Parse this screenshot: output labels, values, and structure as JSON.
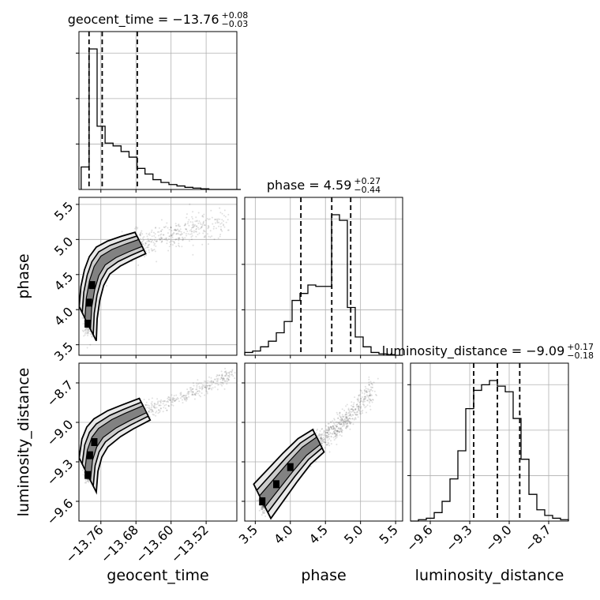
{
  "chart_data": {
    "type": "corner",
    "parameters": [
      {
        "name": "geocent_time",
        "median": -13.76,
        "upper_err": 0.08,
        "lower_err": 0.03,
        "title_prefix": "geocent_time = −13.76",
        "title_sup": "+0.08",
        "title_sub": "−0.03",
        "range": [
          -13.81,
          -13.45
        ],
        "ticks": [
          -13.76,
          -13.68,
          -13.6,
          -13.52
        ],
        "tick_labels": [
          "−13.76",
          "−13.68",
          "−13.60",
          "−13.52"
        ],
        "quantiles": [
          -13.787,
          -13.757,
          -13.677
        ],
        "hist_edges_start": -13.805,
        "hist_bin_width": 0.0182,
        "hist_counts": [
          0.16,
          1.0,
          0.45,
          0.33,
          0.31,
          0.27,
          0.23,
          0.15,
          0.11,
          0.07,
          0.05,
          0.035,
          0.025,
          0.015,
          0.01,
          0.005,
          0,
          0,
          0,
          0
        ],
        "axis_label": "geocent_time"
      },
      {
        "name": "phase",
        "median": 4.59,
        "upper_err": 0.27,
        "lower_err": 0.44,
        "title_prefix": "phase = 4.59",
        "title_sup": "+0.27",
        "title_sub": "−0.44",
        "range": [
          3.35,
          5.6
        ],
        "ticks": [
          3.5,
          4.0,
          4.5,
          5.0,
          5.5
        ],
        "tick_labels": [
          "3.5",
          "4.0",
          "4.5",
          "5.0",
          "5.5"
        ],
        "quantiles": [
          4.15,
          4.59,
          4.86
        ],
        "hist_edges_start": 3.35,
        "hist_bin_width": 0.1125,
        "hist_counts": [
          0.02,
          0.03,
          0.06,
          0.1,
          0.16,
          0.24,
          0.39,
          0.44,
          0.5,
          0.49,
          0.49,
          1.0,
          0.96,
          0.34,
          0.13,
          0.06,
          0.02,
          0.01,
          0.005,
          0
        ],
        "axis_label": "phase"
      },
      {
        "name": "luminosity_distance",
        "median": -9.09,
        "upper_err": 0.17,
        "lower_err": 0.18,
        "title_prefix": "luminosity_distance = −9.09",
        "title_sup": "+0.17",
        "title_sub": "−0.18",
        "range": [
          -9.75,
          -8.55
        ],
        "ticks": [
          -9.6,
          -9.3,
          -9.0,
          -8.7
        ],
        "tick_labels": [
          "−9.6",
          "−9.3",
          "−9.0",
          "−8.7"
        ],
        "quantiles": [
          -9.27,
          -9.09,
          -8.92
        ],
        "hist_edges_start": -9.75,
        "hist_bin_width": 0.06,
        "hist_counts": [
          0.0,
          0.01,
          0.02,
          0.06,
          0.14,
          0.3,
          0.5,
          0.8,
          0.93,
          0.97,
          1.0,
          0.96,
          0.92,
          0.73,
          0.44,
          0.19,
          0.08,
          0.04,
          0.02,
          0.01
        ],
        "axis_label": "luminosity_distance"
      }
    ],
    "pairs": [
      {
        "x_param": "geocent_time",
        "y_param": "phase",
        "samples_model": "curve",
        "n_samples": 1400,
        "curve": [
          [
            -13.79,
            3.8
          ],
          [
            -13.787,
            4.1
          ],
          [
            -13.78,
            4.35
          ],
          [
            -13.77,
            4.55
          ],
          [
            -13.755,
            4.7
          ],
          [
            -13.73,
            4.8
          ],
          [
            -13.7,
            4.88
          ],
          [
            -13.67,
            4.95
          ],
          [
            -13.64,
            5.0
          ],
          [
            -13.6,
            5.06
          ],
          [
            -13.56,
            5.12
          ],
          [
            -13.52,
            5.18
          ],
          [
            -13.47,
            5.25
          ]
        ],
        "scatter_sd": 0.1
      },
      {
        "x_param": "geocent_time",
        "y_param": "luminosity_distance",
        "samples_model": "curve",
        "n_samples": 1400,
        "curve": [
          [
            -13.79,
            -9.4
          ],
          [
            -13.785,
            -9.25
          ],
          [
            -13.775,
            -9.15
          ],
          [
            -13.76,
            -9.08
          ],
          [
            -13.73,
            -9.01
          ],
          [
            -13.7,
            -8.96
          ],
          [
            -13.66,
            -8.9
          ],
          [
            -13.6,
            -8.84
          ],
          [
            -13.55,
            -8.77
          ],
          [
            -13.5,
            -8.7
          ],
          [
            -13.46,
            -8.63
          ]
        ],
        "scatter_sd": 0.03
      },
      {
        "x_param": "phase",
        "y_param": "luminosity_distance",
        "samples_model": "curve",
        "n_samples": 1600,
        "curve": [
          [
            3.6,
            -9.6
          ],
          [
            3.8,
            -9.47
          ],
          [
            4.0,
            -9.34
          ],
          [
            4.2,
            -9.22
          ],
          [
            4.4,
            -9.14
          ],
          [
            4.6,
            -9.07
          ],
          [
            4.8,
            -8.98
          ],
          [
            5.0,
            -8.86
          ],
          [
            5.2,
            -8.73
          ]
        ],
        "scatter_sd": 0.045
      }
    ]
  }
}
